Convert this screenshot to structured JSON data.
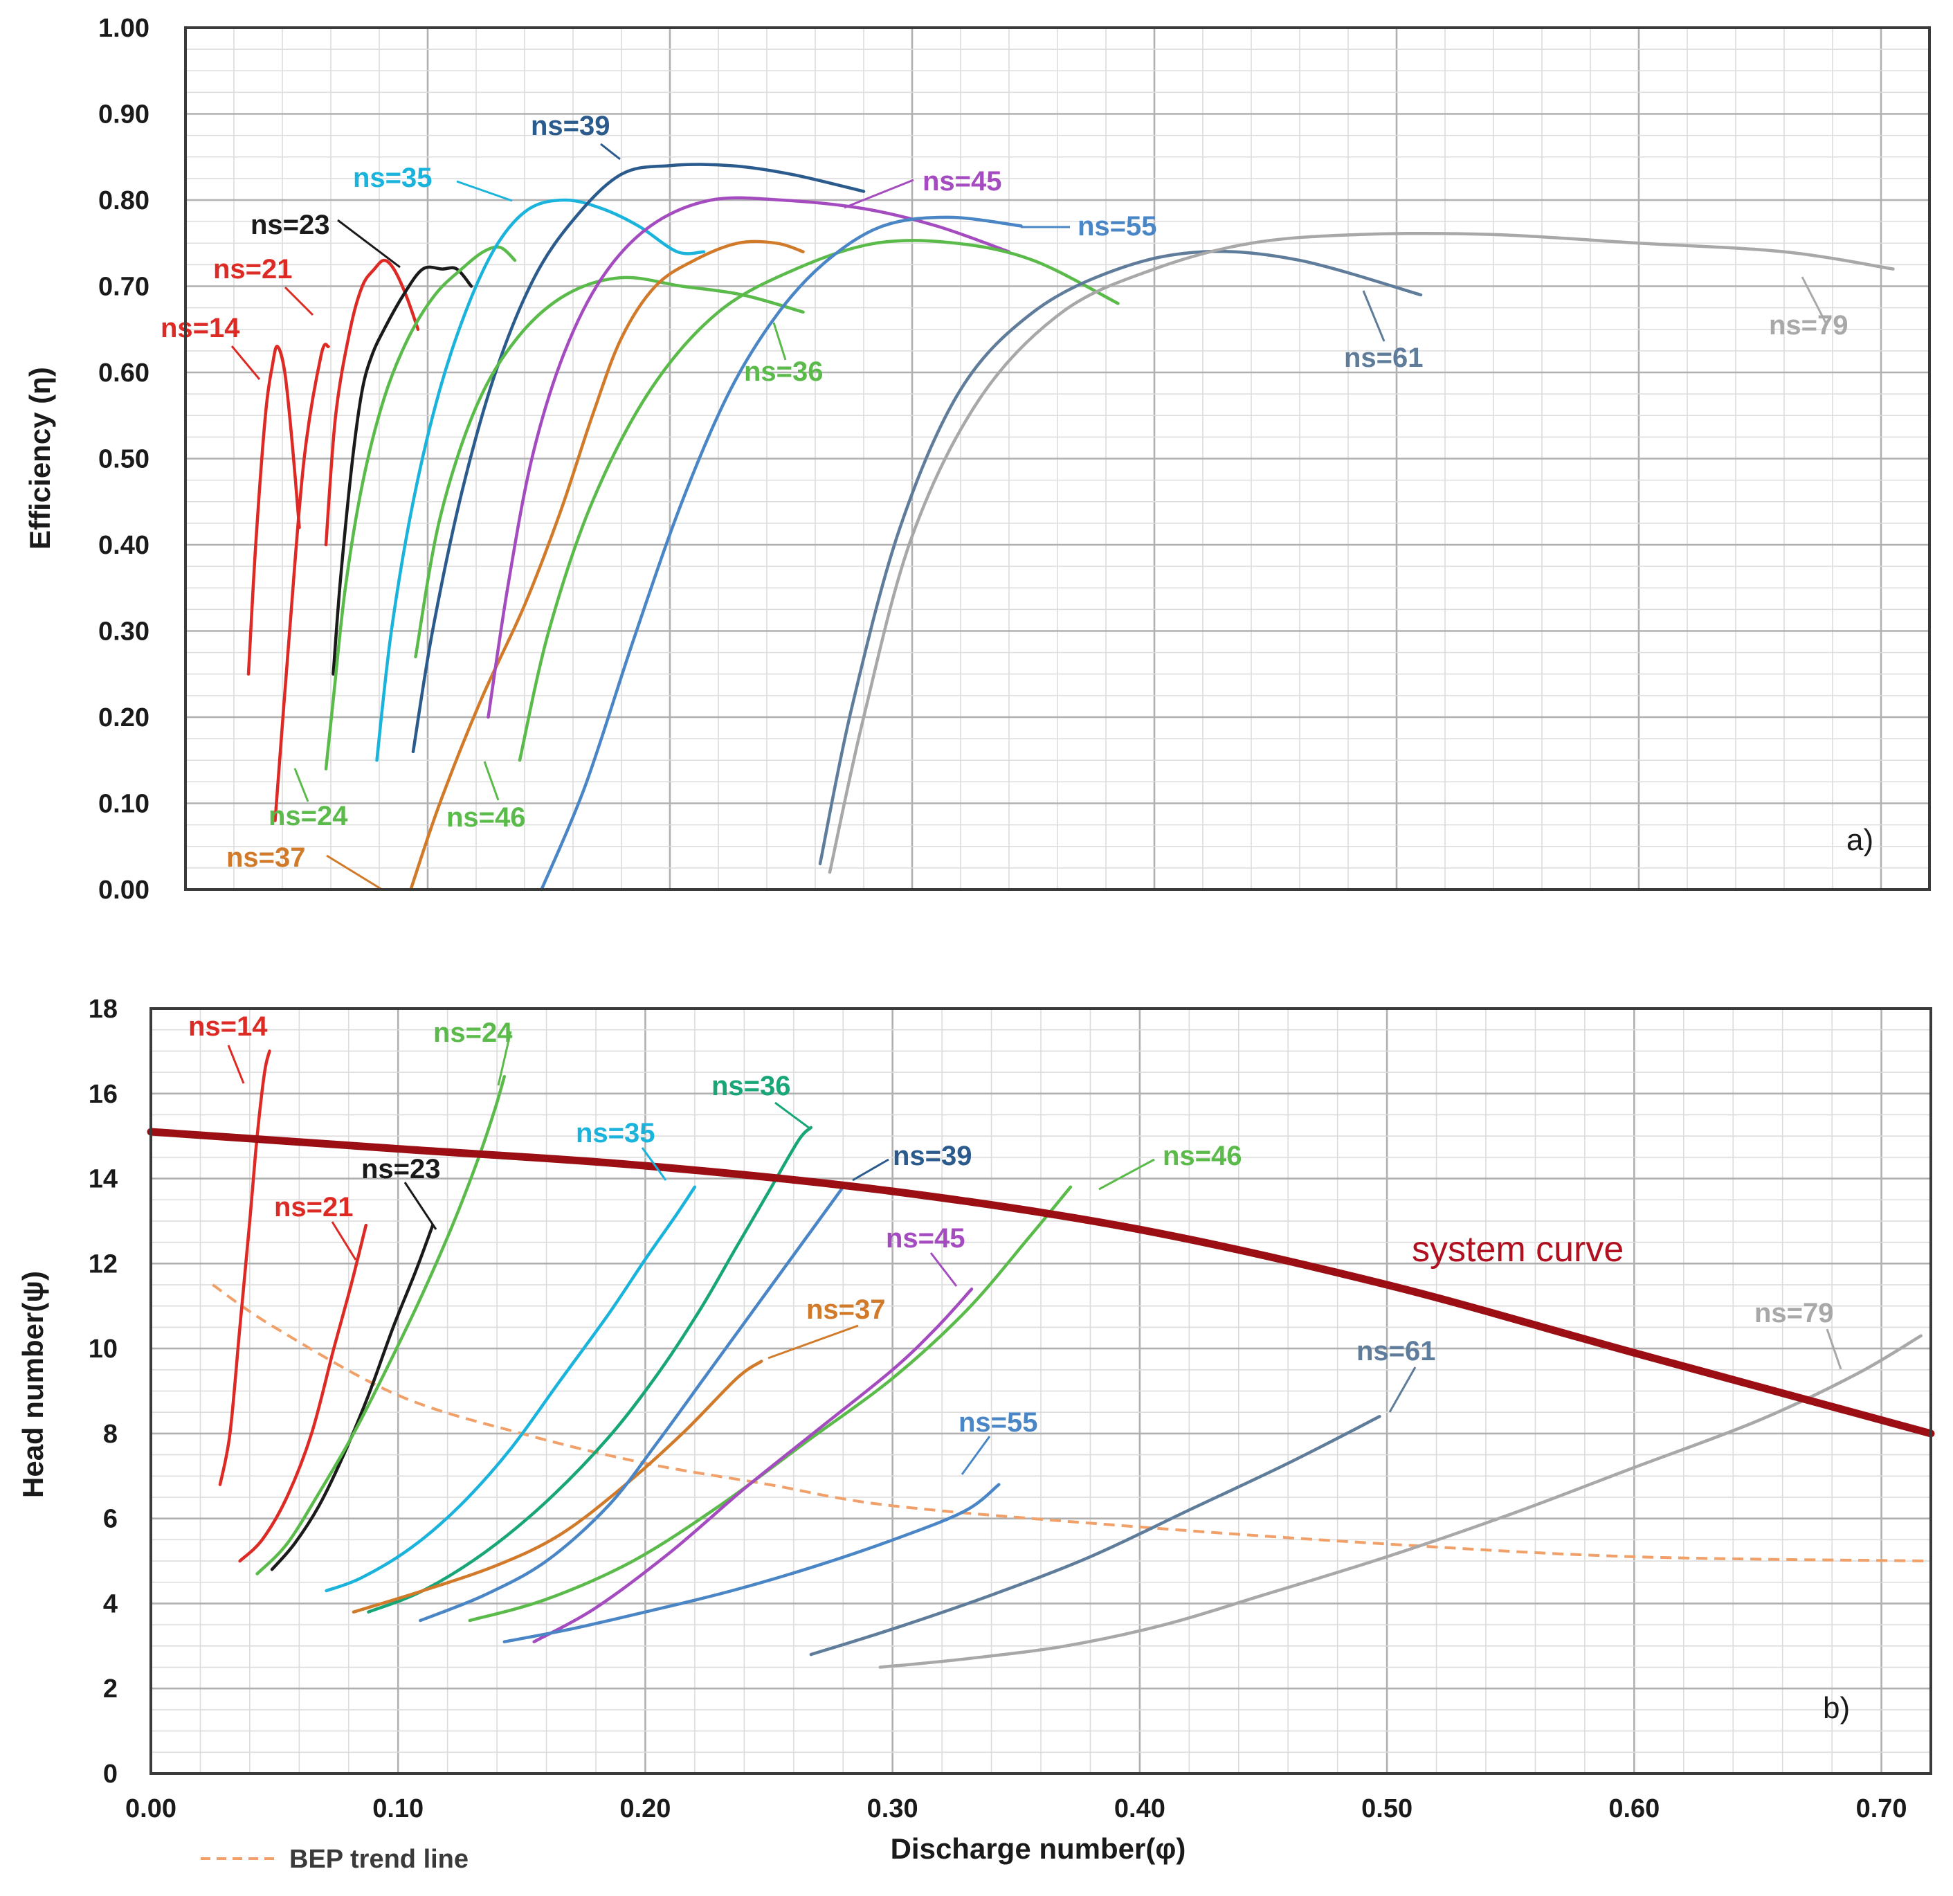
{
  "chart_data": [
    {
      "type": "line",
      "panel_label": "a)",
      "xlabel": "",
      "ylabel": "Efficiency (η)",
      "xlim": [
        0.0,
        0.72
      ],
      "ylim": [
        0.0,
        1.0
      ],
      "yticks": [
        "0.00",
        "0.10",
        "0.20",
        "0.30",
        "0.40",
        "0.50",
        "0.60",
        "0.70",
        "0.80",
        "0.90",
        "1.00"
      ],
      "grid": true,
      "series": [
        {
          "name": "ns=14",
          "color": "#dd2a24",
          "x": [
            0.026,
            0.029,
            0.033,
            0.036,
            0.038,
            0.041,
            0.044,
            0.047
          ],
          "y": [
            0.25,
            0.4,
            0.55,
            0.61,
            0.63,
            0.6,
            0.52,
            0.42
          ]
        },
        {
          "name": "ns=14 (low)",
          "color": "#dd2a24",
          "x": [
            0.037,
            0.043,
            0.049,
            0.056,
            0.059
          ],
          "y": [
            0.08,
            0.3,
            0.5,
            0.62,
            0.63
          ]
        },
        {
          "name": "ns=21",
          "color": "#dd2a24",
          "x": [
            0.058,
            0.062,
            0.068,
            0.073,
            0.078,
            0.082,
            0.086,
            0.091,
            0.096
          ],
          "y": [
            0.4,
            0.55,
            0.65,
            0.7,
            0.72,
            0.73,
            0.72,
            0.69,
            0.65
          ]
        },
        {
          "name": "ns=23",
          "color": "#1a1a1a",
          "x": [
            0.061,
            0.064,
            0.069,
            0.073,
            0.077,
            0.082,
            0.09,
            0.098,
            0.106,
            0.112,
            0.118
          ],
          "y": [
            0.25,
            0.36,
            0.5,
            0.58,
            0.62,
            0.65,
            0.69,
            0.72,
            0.72,
            0.72,
            0.7
          ]
        },
        {
          "name": "ns=24",
          "color": "#5aba4a",
          "x": [
            0.058,
            0.061,
            0.066,
            0.073,
            0.082,
            0.092,
            0.103,
            0.114,
            0.123,
            0.13,
            0.136
          ],
          "y": [
            0.14,
            0.22,
            0.35,
            0.47,
            0.57,
            0.64,
            0.69,
            0.72,
            0.74,
            0.745,
            0.73
          ]
        },
        {
          "name": "ns=35",
          "color": "#1ab3dc",
          "x": [
            0.079,
            0.085,
            0.094,
            0.105,
            0.117,
            0.129,
            0.142,
            0.157,
            0.172,
            0.187,
            0.203,
            0.214
          ],
          "y": [
            0.15,
            0.3,
            0.45,
            0.58,
            0.68,
            0.75,
            0.79,
            0.8,
            0.79,
            0.77,
            0.74,
            0.74
          ]
        },
        {
          "name": "ns=39",
          "color": "#2a5b8c",
          "x": [
            0.094,
            0.102,
            0.114,
            0.128,
            0.144,
            0.161,
            0.18,
            0.2,
            0.225,
            0.25,
            0.28
          ],
          "y": [
            0.16,
            0.3,
            0.46,
            0.6,
            0.71,
            0.78,
            0.83,
            0.84,
            0.84,
            0.83,
            0.81
          ]
        },
        {
          "name": "ns=36",
          "color": "#5aba4a",
          "x": [
            0.095,
            0.105,
            0.12,
            0.137,
            0.157,
            0.18,
            0.205,
            0.23,
            0.255
          ],
          "y": [
            0.27,
            0.43,
            0.56,
            0.64,
            0.69,
            0.71,
            0.7,
            0.69,
            0.67
          ]
        },
        {
          "name": "ns=37",
          "color": "#d17a2a",
          "x": [
            0.093,
            0.105,
            0.122,
            0.14,
            0.155,
            0.168,
            0.18,
            0.194,
            0.21,
            0.228,
            0.244,
            0.255
          ],
          "y": [
            0.0,
            0.1,
            0.22,
            0.33,
            0.44,
            0.55,
            0.64,
            0.7,
            0.73,
            0.75,
            0.75,
            0.74
          ]
        },
        {
          "name": "ns=45",
          "color": "#a44cbf",
          "x": [
            0.125,
            0.133,
            0.143,
            0.156,
            0.172,
            0.192,
            0.217,
            0.246,
            0.28,
            0.31,
            0.34
          ],
          "y": [
            0.2,
            0.35,
            0.5,
            0.62,
            0.71,
            0.77,
            0.8,
            0.8,
            0.79,
            0.77,
            0.74
          ]
        },
        {
          "name": "ns=46",
          "color": "#5aba4a",
          "x": [
            0.138,
            0.15,
            0.168,
            0.192,
            0.22,
            0.252,
            0.285,
            0.318,
            0.35,
            0.385
          ],
          "y": [
            0.15,
            0.3,
            0.45,
            0.58,
            0.67,
            0.72,
            0.75,
            0.75,
            0.73,
            0.68
          ]
        },
        {
          "name": "ns=55",
          "color": "#4a86c5",
          "x": [
            0.147,
            0.165,
            0.185,
            0.205,
            0.225,
            0.245,
            0.265,
            0.288,
            0.315,
            0.345
          ],
          "y": [
            0.0,
            0.12,
            0.29,
            0.45,
            0.58,
            0.67,
            0.73,
            0.77,
            0.78,
            0.77
          ]
        },
        {
          "name": "ns=61",
          "color": "#5f7d9a",
          "x": [
            0.262,
            0.275,
            0.295,
            0.32,
            0.35,
            0.385,
            0.42,
            0.46,
            0.51
          ],
          "y": [
            0.03,
            0.21,
            0.42,
            0.58,
            0.67,
            0.72,
            0.74,
            0.73,
            0.69
          ]
        },
        {
          "name": "ns=79",
          "color": "#a8a8a8",
          "x": [
            0.266,
            0.28,
            0.3,
            0.328,
            0.362,
            0.4,
            0.44,
            0.485,
            0.54,
            0.6,
            0.66,
            0.705
          ],
          "y": [
            0.02,
            0.2,
            0.41,
            0.57,
            0.67,
            0.72,
            0.75,
            0.76,
            0.76,
            0.75,
            0.74,
            0.72
          ]
        }
      ],
      "annotations": [
        {
          "text": "ns=14",
          "color": "#dd2a24"
        },
        {
          "text": "ns=21",
          "color": "#dd2a24"
        },
        {
          "text": "ns=23",
          "color": "#1a1a1a"
        },
        {
          "text": "ns=35",
          "color": "#1ab3dc"
        },
        {
          "text": "ns=39",
          "color": "#2a5b8c"
        },
        {
          "text": "ns=45",
          "color": "#a44cbf"
        },
        {
          "text": "ns=55",
          "color": "#4a86c5"
        },
        {
          "text": "ns=79",
          "color": "#a8a8a8"
        },
        {
          "text": "ns=61",
          "color": "#5f7d9a"
        },
        {
          "text": "ns=36",
          "color": "#5aba4a"
        },
        {
          "text": "ns=24",
          "color": "#5aba4a"
        },
        {
          "text": "ns=46",
          "color": "#5aba4a"
        },
        {
          "text": "ns=37",
          "color": "#d17a2a"
        }
      ]
    },
    {
      "type": "line",
      "panel_label": "b)",
      "xlabel": "Discharge number(φ)",
      "ylabel": "Head number(ψ)",
      "xlim": [
        0.0,
        0.72
      ],
      "ylim": [
        0,
        18
      ],
      "xticks": [
        "0.00",
        "0.10",
        "0.20",
        "0.30",
        "0.40",
        "0.50",
        "0.60",
        "0.70"
      ],
      "yticks": [
        "0",
        "2",
        "4",
        "6",
        "8",
        "10",
        "12",
        "14",
        "16",
        "18"
      ],
      "grid": true,
      "system_curve": {
        "name": "system curve",
        "label": "system curve",
        "color": "#9b0f14",
        "x": [
          0.0,
          0.1,
          0.2,
          0.3,
          0.4,
          0.5,
          0.6,
          0.72
        ],
        "y": [
          15.1,
          14.7,
          14.3,
          13.7,
          12.8,
          11.5,
          9.9,
          8.0
        ]
      },
      "bep_trend": {
        "name": "BEP trend line",
        "color": "#f0a068",
        "x": [
          0.025,
          0.05,
          0.1,
          0.15,
          0.2,
          0.25,
          0.3,
          0.4,
          0.5,
          0.6,
          0.72
        ],
        "y": [
          11.5,
          10.5,
          8.9,
          8.0,
          7.3,
          6.8,
          6.3,
          5.8,
          5.4,
          5.1,
          5.0
        ]
      },
      "series": [
        {
          "name": "ns=14",
          "color": "#dd2a24",
          "x": [
            0.028,
            0.032,
            0.036,
            0.04,
            0.043,
            0.046,
            0.048
          ],
          "y": [
            6.8,
            8.0,
            10.5,
            13.0,
            15.0,
            16.5,
            17.0
          ]
        },
        {
          "name": "ns=21",
          "color": "#dd2a24",
          "x": [
            0.036,
            0.045,
            0.055,
            0.065,
            0.074,
            0.081,
            0.087
          ],
          "y": [
            5.0,
            5.5,
            6.5,
            8.0,
            10.0,
            11.5,
            12.9
          ]
        },
        {
          "name": "ns=23",
          "color": "#1a1a1a",
          "x": [
            0.049,
            0.058,
            0.068,
            0.078,
            0.088,
            0.098,
            0.107,
            0.114
          ],
          "y": [
            4.8,
            5.4,
            6.3,
            7.5,
            8.9,
            10.5,
            11.8,
            12.9
          ]
        },
        {
          "name": "ns=24",
          "color": "#5aba4a",
          "x": [
            0.043,
            0.055,
            0.068,
            0.082,
            0.096,
            0.11,
            0.122,
            0.132,
            0.139,
            0.143
          ],
          "y": [
            4.7,
            5.4,
            6.6,
            8.0,
            9.6,
            11.3,
            12.9,
            14.4,
            15.6,
            16.4
          ]
        },
        {
          "name": "ns=35",
          "color": "#1ab3dc",
          "x": [
            0.071,
            0.085,
            0.105,
            0.125,
            0.145,
            0.165,
            0.185,
            0.2,
            0.212,
            0.22
          ],
          "y": [
            4.3,
            4.6,
            5.3,
            6.3,
            7.6,
            9.2,
            10.8,
            12.1,
            13.1,
            13.8
          ]
        },
        {
          "name": "ns=36",
          "color": "#18a678",
          "x": [
            0.088,
            0.11,
            0.135,
            0.16,
            0.185,
            0.205,
            0.222,
            0.236,
            0.25,
            0.262,
            0.267
          ],
          "y": [
            3.8,
            4.3,
            5.2,
            6.4,
            7.9,
            9.4,
            10.9,
            12.3,
            13.7,
            14.9,
            15.2
          ]
        },
        {
          "name": "ns=37",
          "color": "#d17a2a",
          "x": [
            0.082,
            0.11,
            0.14,
            0.165,
            0.19,
            0.215,
            0.237,
            0.247
          ],
          "y": [
            3.8,
            4.3,
            4.9,
            5.6,
            6.7,
            8.0,
            9.3,
            9.7
          ]
        },
        {
          "name": "ns=39",
          "color": "#4a86c5",
          "x": [
            0.109,
            0.135,
            0.16,
            0.185,
            0.205,
            0.225,
            0.245,
            0.265,
            0.28
          ],
          "y": [
            3.6,
            4.2,
            5.0,
            6.3,
            7.8,
            9.4,
            11.0,
            12.6,
            13.8
          ]
        },
        {
          "name": "ns=46",
          "color": "#5aba4a",
          "x": [
            0.129,
            0.16,
            0.195,
            0.23,
            0.265,
            0.3,
            0.33,
            0.355,
            0.372
          ],
          "y": [
            3.6,
            4.1,
            5.0,
            6.3,
            7.8,
            9.3,
            10.9,
            12.6,
            13.8
          ]
        },
        {
          "name": "ns=45",
          "color": "#a44cbf",
          "x": [
            0.155,
            0.18,
            0.21,
            0.24,
            0.27,
            0.3,
            0.318,
            0.332
          ],
          "y": [
            3.1,
            3.9,
            5.2,
            6.7,
            8.1,
            9.5,
            10.5,
            11.4
          ]
        },
        {
          "name": "ns=55",
          "color": "#4a86c5",
          "x": [
            0.143,
            0.17,
            0.2,
            0.235,
            0.27,
            0.305,
            0.33,
            0.343
          ],
          "y": [
            3.1,
            3.4,
            3.8,
            4.3,
            4.9,
            5.6,
            6.2,
            6.8
          ]
        },
        {
          "name": "ns=61",
          "color": "#5f7d9a",
          "x": [
            0.267,
            0.3,
            0.34,
            0.38,
            0.42,
            0.46,
            0.497
          ],
          "y": [
            2.8,
            3.4,
            4.2,
            5.1,
            6.2,
            7.3,
            8.4
          ]
        },
        {
          "name": "ns=79",
          "color": "#a8a8a8",
          "x": [
            0.295,
            0.33,
            0.37,
            0.41,
            0.45,
            0.5,
            0.55,
            0.6,
            0.65,
            0.69,
            0.716
          ],
          "y": [
            2.5,
            2.7,
            3.0,
            3.5,
            4.2,
            5.1,
            6.1,
            7.2,
            8.3,
            9.4,
            10.3
          ]
        }
      ],
      "annotations": [
        {
          "text": "ns=14",
          "color": "#dd2a24"
        },
        {
          "text": "ns=24",
          "color": "#5aba4a"
        },
        {
          "text": "ns=36",
          "color": "#18a678"
        },
        {
          "text": "ns=35",
          "color": "#1ab3dc"
        },
        {
          "text": "ns=23",
          "color": "#1a1a1a"
        },
        {
          "text": "ns=39",
          "color": "#2a5b8c"
        },
        {
          "text": "ns=46",
          "color": "#5aba4a"
        },
        {
          "text": "ns=21",
          "color": "#dd2a24"
        },
        {
          "text": "ns=45",
          "color": "#a44cbf"
        },
        {
          "text": "ns=37",
          "color": "#d17a2a"
        },
        {
          "text": "ns=79",
          "color": "#a8a8a8"
        },
        {
          "text": "ns=61",
          "color": "#5f7d9a"
        },
        {
          "text": "ns=55",
          "color": "#4a86c5"
        }
      ]
    }
  ]
}
